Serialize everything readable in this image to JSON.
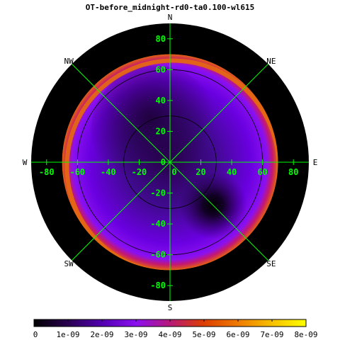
{
  "chart_data": {
    "type": "heatmap",
    "projection": "polar",
    "title": "OT-before_midnight-rd0-ta0.100-wl615",
    "compass": [
      {
        "label": "N",
        "azimuth_deg": 0
      },
      {
        "label": "NE",
        "azimuth_deg": 45
      },
      {
        "label": "E",
        "azimuth_deg": 90
      },
      {
        "label": "SE",
        "azimuth_deg": 135
      },
      {
        "label": "S",
        "azimuth_deg": 180
      },
      {
        "label": "SW",
        "azimuth_deg": 225
      },
      {
        "label": "W",
        "azimuth_deg": 270
      },
      {
        "label": "NW",
        "azimuth_deg": 315
      }
    ],
    "x_ticks": [
      -80,
      -60,
      -40,
      -20,
      0,
      20,
      40,
      60,
      80
    ],
    "y_ticks": [
      80,
      60,
      40,
      20,
      0,
      -20,
      -40,
      -60,
      -80
    ],
    "axis_range": [
      -90,
      90
    ],
    "contour_radii": [
      30,
      60
    ],
    "field_radius": 70,
    "colorbar": {
      "ticks": [
        "0",
        "1e-09",
        "2e-09",
        "3e-09",
        "4e-09",
        "5e-09",
        "6e-09",
        "7e-09",
        "8e-09"
      ],
      "min": 0,
      "max": 8e-09,
      "stops": [
        "#000000",
        "#2a0050",
        "#5200b0",
        "#8a10f0",
        "#b61878",
        "#dc3f00",
        "#ee7a00",
        "#f6c000",
        "#ffff00"
      ]
    },
    "features": [
      {
        "name": "dark spot",
        "x": 28,
        "y": -28,
        "value": 0
      },
      {
        "name": "limb brightening",
        "radius": 67,
        "value": 6e-09
      }
    ],
    "grid_color": "#00ff00",
    "background_disk_color": "#000000"
  }
}
